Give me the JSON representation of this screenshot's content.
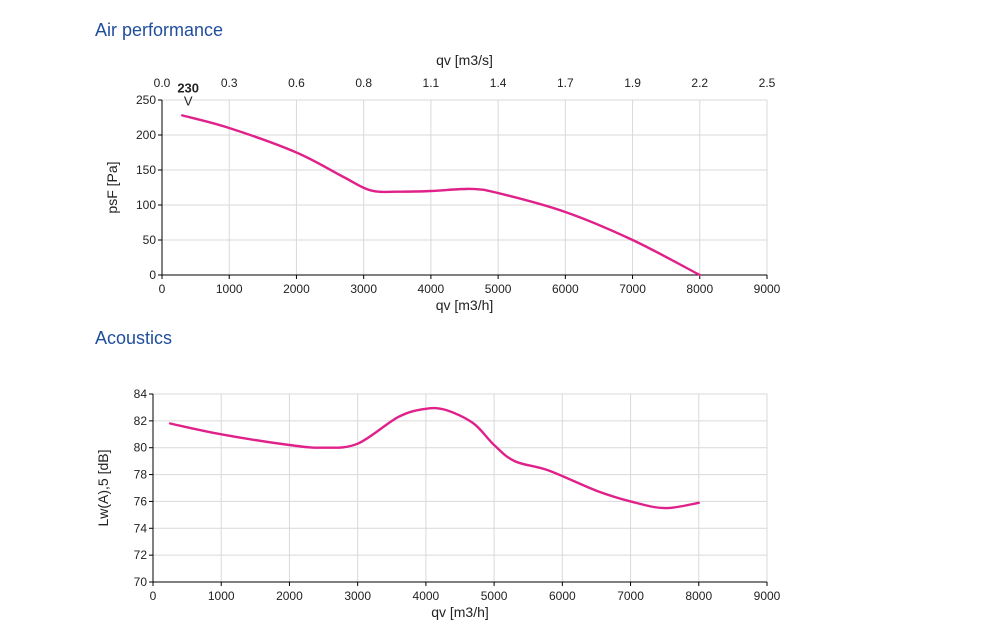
{
  "sections": {
    "air_title": "Air performance",
    "acoustics_title": "Acoustics"
  },
  "chart_data": [
    {
      "type": "line",
      "title": "Air performance",
      "xlabel": "qv [m3/h]",
      "ylabel": "psF [Pa]",
      "x2label": "qv [m3/s]",
      "xlim": [
        0,
        9000
      ],
      "ylim": [
        0,
        250
      ],
      "xticks": [
        0,
        1000,
        2000,
        3000,
        4000,
        5000,
        6000,
        7000,
        8000,
        9000
      ],
      "yticks": [
        0,
        50,
        100,
        150,
        200,
        250
      ],
      "x2ticks": [
        "0.0",
        "0.3",
        "0.6",
        "0.8",
        "1.1",
        "1.4",
        "1.7",
        "1.9",
        "2.2",
        "2.5"
      ],
      "grid": true,
      "color": "#e0218a",
      "curve_label": "230",
      "curve_label_marker": "V",
      "series": [
        {
          "x": [
            300,
            1000,
            2000,
            2700,
            3100,
            3500,
            4000,
            4600,
            5000,
            6000,
            7000,
            8000
          ],
          "y": [
            228,
            210,
            175,
            140,
            121,
            119,
            120,
            123,
            117,
            90,
            50,
            0
          ]
        }
      ]
    },
    {
      "type": "line",
      "title": "Acoustics",
      "xlabel": "qv [m3/h]",
      "ylabel": "Lw(A),5 [dB]",
      "xlim": [
        0,
        9000
      ],
      "ylim": [
        70,
        84
      ],
      "xticks": [
        0,
        1000,
        2000,
        3000,
        4000,
        5000,
        6000,
        7000,
        8000,
        9000
      ],
      "yticks": [
        70,
        72,
        74,
        76,
        78,
        80,
        82,
        84
      ],
      "grid": true,
      "color": "#e0218a",
      "series": [
        {
          "x": [
            250,
            1000,
            2000,
            2500,
            3000,
            3600,
            4000,
            4300,
            4700,
            5000,
            5300,
            5800,
            6500,
            7000,
            7500,
            8000
          ],
          "y": [
            81.8,
            81.0,
            80.2,
            80.0,
            80.3,
            82.3,
            82.9,
            82.8,
            81.8,
            80.2,
            79.0,
            78.3,
            76.8,
            76.0,
            75.5,
            75.9
          ]
        }
      ]
    }
  ]
}
